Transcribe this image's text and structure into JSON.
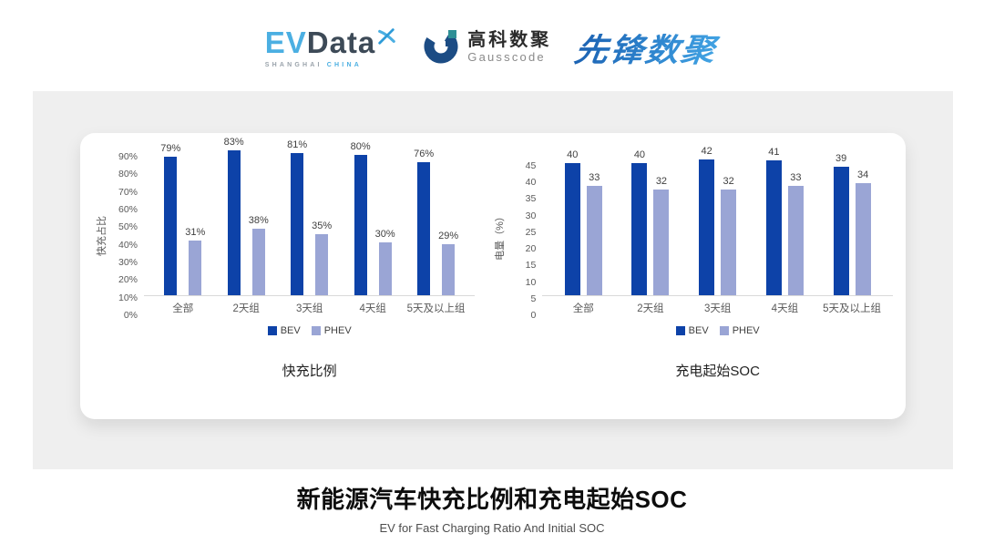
{
  "header": {
    "evdata_logo": {
      "part1": "EV",
      "part2": "Data",
      "tagline_left": "SHANGHAI",
      "tagline_right": "CHINA"
    },
    "gausscode_logo": {
      "name_cn": "高科数聚",
      "name_en": "Gausscode"
    },
    "pioneer_logo": {
      "text": "先锋数聚"
    }
  },
  "chart_data": [
    {
      "type": "bar",
      "title": "快充比例",
      "ylabel": "快充占比",
      "categories": [
        "全部",
        "2天组",
        "3天组",
        "4天组",
        "5天及以上组"
      ],
      "series": [
        {
          "name": "BEV",
          "color": "#0D42A8",
          "values": [
            79,
            83,
            81,
            80,
            76
          ]
        },
        {
          "name": "PHEV",
          "color": "#9AA5D5",
          "values": [
            31,
            38,
            35,
            30,
            29
          ]
        }
      ],
      "ylim": [
        0,
        90
      ],
      "ytick_step": 10,
      "tick_suffix": "%",
      "value_suffix": "%",
      "grid": false,
      "legend_position": "bottom"
    },
    {
      "type": "bar",
      "title": "充电起始SOC",
      "ylabel": "电量（%）",
      "categories": [
        "全部",
        "2天组",
        "3天组",
        "4天组",
        "5天及以上组"
      ],
      "series": [
        {
          "name": "BEV",
          "color": "#0D42A8",
          "values": [
            40,
            40,
            42,
            41,
            39
          ]
        },
        {
          "name": "PHEV",
          "color": "#9AA5D5",
          "values": [
            33,
            32,
            32,
            33,
            34
          ]
        }
      ],
      "ylim": [
        0,
        45
      ],
      "ytick_step": 5,
      "tick_suffix": "",
      "value_suffix": "",
      "grid": false,
      "legend_position": "bottom"
    }
  ],
  "footer": {
    "title": "新能源汽车快充比例和充电起始SOC",
    "subtitle": "EV for Fast Charging Ratio And Initial SOC"
  },
  "colors": {
    "bev": "#0D42A8",
    "phev": "#9AA5D5",
    "panel_background": "#EFEFEF",
    "card_background": "#FFFFFF",
    "axis_text": "#595959",
    "baseline": "#D9D9D9",
    "logo_cyan": "#4BAFE2",
    "logo_slate": "#3D4A57",
    "gauss_navy": "#1C4C84",
    "gauss_teal": "#2E8F96",
    "pioneer_blue_dark": "#1A5FB0",
    "pioneer_blue_light": "#44A7E6"
  }
}
